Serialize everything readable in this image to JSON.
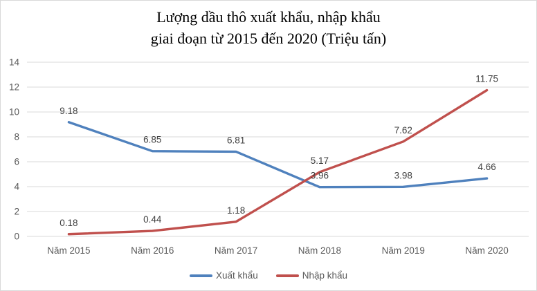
{
  "chart_data": {
    "type": "line",
    "title_line1": "Lượng dầu thô xuất khẩu, nhập khẩu",
    "title_line2": "giai đoạn từ 2015 đến 2020 (Triệu tấn)",
    "categories": [
      "Năm 2015",
      "Năm 2016",
      "Năm 2017",
      "Năm 2018",
      "Năm 2019",
      "Năm 2020"
    ],
    "series": [
      {
        "name": "Xuất khẩu",
        "color": "#4F81BD",
        "values": [
          9.18,
          6.85,
          6.81,
          3.96,
          3.98,
          4.66
        ]
      },
      {
        "name": "Nhập khẩu",
        "color": "#C0504D",
        "values": [
          0.18,
          0.44,
          1.18,
          5.17,
          7.62,
          11.75
        ]
      }
    ],
    "ylim": [
      0,
      14
    ],
    "yticks": [
      0,
      2,
      4,
      6,
      8,
      10,
      12,
      14
    ],
    "grid": true,
    "data_labels": true,
    "legend_position": "bottom",
    "colors": {
      "gridline": "#d9d9d9",
      "axis_text": "#595959",
      "label_text": "#3f3f3f",
      "border": "#d9d9d9",
      "background": "#ffffff"
    }
  }
}
